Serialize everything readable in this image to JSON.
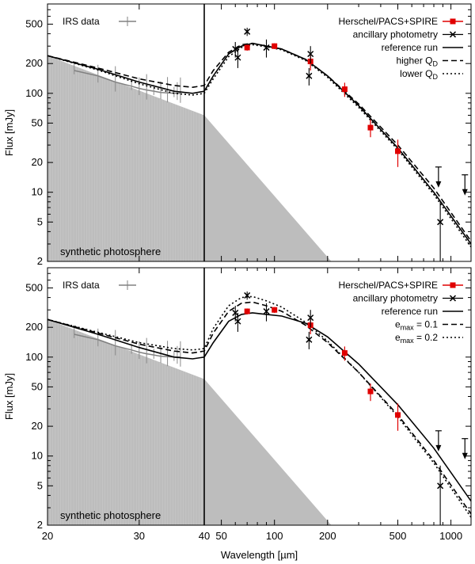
{
  "chart_data": [
    {
      "type": "line",
      "panel": "top",
      "xlabel": "Wavelength [µm]",
      "ylabel": "Flux [mJy]",
      "xscale": "log",
      "yscale": "log",
      "xlim": [
        20,
        1300
      ],
      "ylim": [
        2,
        800
      ],
      "x_break": 40,
      "x_ticks": [
        "20",
        "30",
        "40",
        "50",
        "100",
        "200",
        "500",
        "1000"
      ],
      "y_ticks": [
        "2",
        "5",
        "10",
        "20",
        "50",
        "100",
        "200",
        "500"
      ],
      "photosphere_label": "synthetic photosphere",
      "irs_label": "IRS data",
      "legend": [
        "Herschel/PACS+SPIRE",
        "ancillary photometry",
        "reference run",
        "higher Q_D",
        "lower Q_D"
      ],
      "legend_parts": [
        {
          "text": "Herschel/PACS+SPIRE"
        },
        {
          "text": "ancillary photometry"
        },
        {
          "text": "reference run"
        },
        {
          "text": "higher Q",
          "sub": "D"
        },
        {
          "text": "lower Q",
          "sub": "D"
        }
      ],
      "photosphere": {
        "x": [
          20,
          40,
          210
        ],
        "y": [
          240,
          60,
          2
        ]
      },
      "irs_data": {
        "x": [
          22.5,
          25,
          27,
          29,
          30,
          31,
          32,
          33,
          34,
          35,
          35.5,
          36
        ],
        "y": [
          170,
          150,
          130,
          118,
          112,
          108,
          105,
          102,
          101,
          100,
          100,
          100
        ]
      },
      "herschel": {
        "x": [
          70,
          100,
          160,
          250,
          350,
          500
        ],
        "y": [
          290,
          300,
          210,
          110,
          45,
          26
        ],
        "err": [
          20,
          20,
          40,
          18,
          9,
          8
        ]
      },
      "ancillary": {
        "x": [
          60,
          62,
          70,
          90,
          157,
          160,
          870
        ],
        "y": [
          280,
          230,
          420,
          290,
          150,
          250,
          5
        ],
        "err": [
          50,
          50,
          40,
          60,
          30,
          50,
          3
        ]
      },
      "upper_limits": [
        {
          "x": 850,
          "y": 18
        },
        {
          "x": 1200,
          "y": 15
        }
      ],
      "series": [
        {
          "name": "reference run",
          "style": "solid",
          "x": [
            20,
            25,
            30,
            35,
            38,
            40,
            45,
            55,
            65,
            75,
            90,
            110,
            150,
            200,
            300,
            500,
            800,
            1300
          ],
          "y": [
            240,
            175,
            130,
            105,
            100,
            105,
            150,
            250,
            300,
            320,
            300,
            280,
            220,
            150,
            75,
            28,
            10,
            3
          ]
        },
        {
          "name": "higher Q_D",
          "style": "dashed",
          "x": [
            20,
            25,
            30,
            35,
            38,
            40,
            45,
            55,
            65,
            75,
            90,
            110,
            150,
            200,
            300,
            500,
            800,
            1300
          ],
          "y": [
            240,
            180,
            140,
            120,
            115,
            120,
            170,
            260,
            310,
            320,
            300,
            280,
            220,
            150,
            78,
            30,
            11,
            3.2
          ]
        },
        {
          "name": "lower Q_D",
          "style": "dotted",
          "x": [
            20,
            25,
            30,
            35,
            38,
            40,
            45,
            55,
            65,
            75,
            90,
            110,
            150,
            200,
            300,
            500,
            800,
            1300
          ],
          "y": [
            240,
            172,
            125,
            100,
            96,
            100,
            140,
            235,
            290,
            310,
            295,
            275,
            215,
            145,
            72,
            27,
            9.5,
            2.8
          ]
        }
      ]
    },
    {
      "type": "line",
      "panel": "bottom",
      "xlabel": "Wavelength [µm]",
      "ylabel": "Flux [mJy]",
      "xscale": "log",
      "yscale": "log",
      "xlim": [
        20,
        1300
      ],
      "ylim": [
        2,
        800
      ],
      "x_break": 40,
      "x_ticks": [
        "20",
        "30",
        "40",
        "50",
        "100",
        "200",
        "500",
        "1000"
      ],
      "y_ticks": [
        "2",
        "5",
        "10",
        "20",
        "50",
        "100",
        "200",
        "500"
      ],
      "photosphere_label": "synthetic photosphere",
      "irs_label": "IRS data",
      "legend": [
        "Herschel/PACS+SPIRE",
        "ancillary photometry",
        "reference run",
        "e_max = 0.1",
        "e_max = 0.2"
      ],
      "legend_parts": [
        {
          "text": "Herschel/PACS+SPIRE"
        },
        {
          "text": "ancillary photometry"
        },
        {
          "text": "reference run"
        },
        {
          "text": "e",
          "sub": "max",
          "after": " = 0.1"
        },
        {
          "text": "e",
          "sub": "max",
          "after": " = 0.2"
        }
      ],
      "photosphere": {
        "x": [
          20,
          40,
          210
        ],
        "y": [
          240,
          60,
          2
        ]
      },
      "irs_data": {
        "x": [
          22.5,
          25,
          27,
          29,
          30,
          31,
          32,
          33,
          34,
          35,
          35.5,
          36
        ],
        "y": [
          170,
          150,
          130,
          118,
          112,
          108,
          105,
          102,
          101,
          100,
          100,
          100
        ]
      },
      "herschel": {
        "x": [
          70,
          100,
          160,
          250,
          350,
          500
        ],
        "y": [
          290,
          300,
          210,
          110,
          45,
          26
        ],
        "err": [
          20,
          20,
          40,
          18,
          9,
          8
        ]
      },
      "ancillary": {
        "x": [
          60,
          62,
          70,
          90,
          157,
          160,
          870
        ],
        "y": [
          280,
          230,
          420,
          290,
          150,
          250,
          5
        ],
        "err": [
          50,
          50,
          40,
          60,
          30,
          50,
          3
        ]
      },
      "upper_limits": [
        {
          "x": 850,
          "y": 18
        },
        {
          "x": 1200,
          "y": 15
        }
      ],
      "series": [
        {
          "name": "reference run",
          "style": "solid",
          "x": [
            20,
            25,
            30,
            35,
            38,
            40,
            45,
            55,
            65,
            75,
            90,
            110,
            150,
            200,
            300,
            500,
            800,
            1300
          ],
          "y": [
            240,
            170,
            125,
            100,
            96,
            100,
            140,
            230,
            270,
            280,
            270,
            260,
            220,
            160,
            85,
            33,
            12,
            3.5
          ]
        },
        {
          "name": "e_max = 0.1",
          "style": "dashed",
          "x": [
            20,
            25,
            30,
            35,
            38,
            40,
            45,
            55,
            65,
            75,
            90,
            110,
            150,
            200,
            300,
            500,
            800,
            1300
          ],
          "y": [
            240,
            175,
            135,
            115,
            110,
            115,
            175,
            290,
            350,
            360,
            330,
            290,
            210,
            140,
            70,
            26,
            9,
            2.6
          ]
        },
        {
          "name": "e_max = 0.2",
          "style": "dotted",
          "x": [
            20,
            25,
            30,
            35,
            38,
            40,
            45,
            55,
            65,
            75,
            90,
            110,
            150,
            200,
            300,
            500,
            800,
            1300
          ],
          "y": [
            240,
            178,
            140,
            122,
            118,
            122,
            195,
            330,
            400,
            410,
            370,
            320,
            225,
            145,
            70,
            25,
            8.5,
            2.4
          ]
        }
      ]
    }
  ]
}
